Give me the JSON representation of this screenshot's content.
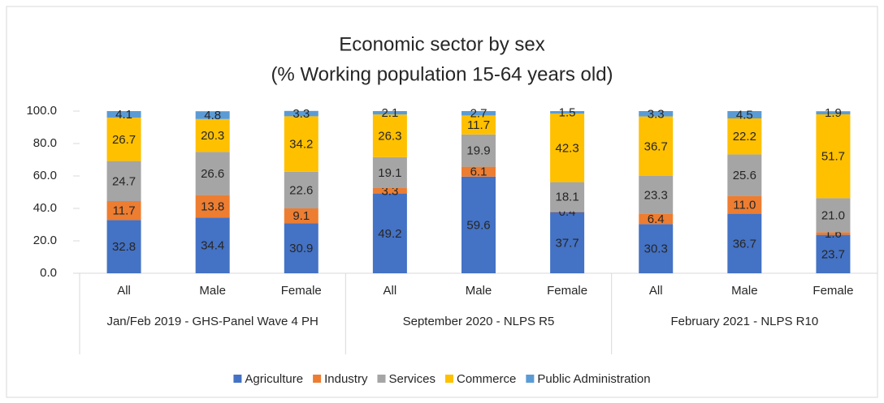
{
  "chart_data": {
    "type": "stacked_bar",
    "title": "Economic sector by sex",
    "subtitle": "(% Working population 15-64 years old)",
    "categories": [
      "All",
      "Male",
      "Female",
      "All",
      "Male",
      "Female",
      "All",
      "Male",
      "Female"
    ],
    "groups": [
      "Jan/Feb 2019 - GHS-Panel Wave 4 PH",
      "September 2020 - NLPS R5",
      "February 2021 - NLPS R10"
    ],
    "series": [
      {
        "name": "Agriculture",
        "color": "#4472c4",
        "values": [
          32.8,
          34.4,
          30.9,
          49.2,
          59.6,
          37.7,
          30.3,
          36.7,
          23.7
        ],
        "value_labels": [
          "32.8",
          "34.4",
          "30.9",
          "49.2",
          "59.6",
          "37.7",
          "30.3",
          "36.7",
          "23.7"
        ]
      },
      {
        "name": "Industry",
        "color": "#ed7d31",
        "values": [
          11.7,
          13.8,
          9.1,
          3.3,
          6.1,
          0.4,
          6.4,
          11.0,
          1.6
        ],
        "value_labels": [
          "11.7",
          "13.8",
          "9.1",
          "3.3",
          "6.1",
          "0.4",
          "6.4",
          "11.0",
          "1.6"
        ]
      },
      {
        "name": "Services",
        "color": "#a5a5a5",
        "values": [
          24.7,
          26.6,
          22.6,
          19.1,
          19.9,
          18.1,
          23.3,
          25.6,
          21.0
        ],
        "value_labels": [
          "24.7",
          "26.6",
          "22.6",
          "19.1",
          "19.9",
          "18.1",
          "23.3",
          "25.6",
          "21.0"
        ]
      },
      {
        "name": "Commerce",
        "color": "#ffc000",
        "values": [
          26.7,
          20.3,
          34.2,
          26.3,
          11.7,
          42.3,
          36.7,
          22.2,
          51.7
        ],
        "value_labels": [
          "26.7",
          "20.3",
          "34.2",
          "26.3",
          "11.7",
          "42.3",
          "36.7",
          "22.2",
          "51.7"
        ]
      },
      {
        "name": "Public Administration",
        "color": "#5b9bd5",
        "values": [
          4.1,
          4.8,
          3.3,
          2.1,
          2.7,
          1.5,
          3.3,
          4.5,
          1.9
        ],
        "value_labels": [
          "4.1",
          "4.8",
          "3.3",
          "2.1",
          "2.7",
          "1.5",
          "3.3",
          "4.5",
          "1.9"
        ]
      }
    ],
    "ylim": [
      0,
      100
    ],
    "yticks": [
      {
        "value": 0,
        "label": "0.0"
      },
      {
        "value": 20,
        "label": "20.0"
      },
      {
        "value": 40,
        "label": "40.0"
      },
      {
        "value": 60,
        "label": "60.0"
      },
      {
        "value": 80,
        "label": "80.0"
      },
      {
        "value": 100,
        "label": "100.0"
      }
    ],
    "legend": "bottom"
  }
}
